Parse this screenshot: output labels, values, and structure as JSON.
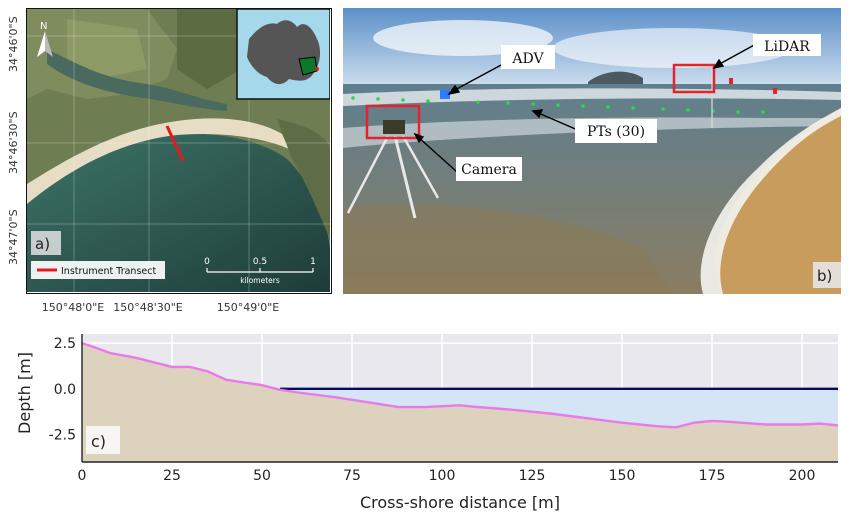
{
  "panel_a": {
    "tag": "a)",
    "north_label": "N",
    "legend_label": "Instrument Transect",
    "scale": {
      "ticks": [
        "0",
        "0.5",
        "1"
      ],
      "unit": "kilometers"
    },
    "lat_labels": [
      "34°46'0\"S",
      "34°46'30\"S",
      "34°47'0\"S"
    ],
    "lon_labels": [
      "150°48'0\"E",
      "150°48'30\"E",
      "150°49'0\"E"
    ],
    "colors": {
      "transect": "#e41a1c",
      "ocean": "#2f5f55",
      "sand": "#e7dcc4"
    }
  },
  "panel_b": {
    "tag": "b)",
    "labels": {
      "adv": "ADV",
      "lidar": "LiDAR",
      "pts": "PTs  (30)",
      "camera": "Camera"
    },
    "colors": {
      "box": "#e3242b",
      "pt_dots": "#22dd44",
      "adv": "#2a7fff"
    }
  },
  "panel_c": {
    "tag": "c)"
  },
  "chart_data": {
    "type": "area",
    "xlabel": "Cross-shore distance [m]",
    "ylabel": "Depth [m]",
    "xlim": [
      0,
      210
    ],
    "ylim": [
      -4.0,
      3.0
    ],
    "xticks": [
      "0",
      "25",
      "50",
      "75",
      "100",
      "125",
      "150",
      "175",
      "200"
    ],
    "xtick_values": [
      0,
      25,
      50,
      75,
      100,
      125,
      150,
      175,
      200
    ],
    "yticks": [
      "2.5",
      "0.0",
      "-2.5"
    ],
    "ytick_values": [
      2.5,
      0.0,
      -2.5
    ],
    "grid": true,
    "series": [
      {
        "kind": "bathymetry",
        "color": "#e77bea",
        "x": [
          0,
          3,
          8,
          15,
          20,
          25,
          30,
          35,
          40,
          45,
          50,
          55,
          60,
          70,
          80,
          88,
          95,
          100,
          105,
          110,
          120,
          130,
          140,
          150,
          160,
          165,
          170,
          175,
          180,
          190,
          200,
          205,
          210
        ],
        "y": [
          2.5,
          2.3,
          1.95,
          1.7,
          1.45,
          1.2,
          1.2,
          0.95,
          0.5,
          0.35,
          0.2,
          -0.05,
          -0.2,
          -0.45,
          -0.75,
          -1.0,
          -1.0,
          -0.95,
          -0.9,
          -1.0,
          -1.15,
          -1.35,
          -1.6,
          -1.85,
          -2.05,
          -2.1,
          -1.85,
          -1.75,
          -1.8,
          -1.95,
          -1.95,
          -1.9,
          -2.0
        ]
      },
      {
        "kind": "water_level",
        "color": "#0a0a5c",
        "x": [
          55,
          210
        ],
        "y": [
          0.0,
          0.0
        ]
      }
    ],
    "colors": {
      "plot_bg": "#e8e8ee",
      "sand_fill": "#ddd2bd",
      "water_fill": "#d6e5f5",
      "grid": "#ffffff"
    }
  }
}
